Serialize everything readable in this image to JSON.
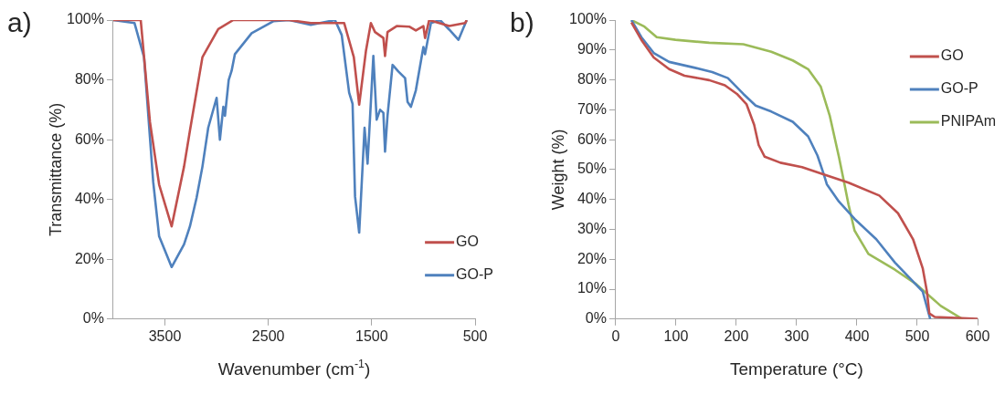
{
  "chart_data": [
    {
      "type": "line",
      "annotations": [
        "a)"
      ],
      "xlabel": "Wavenumber (cm$^{-1}$)",
      "ylabel": "Transmittance (%)",
      "xlim": [
        4000,
        500
      ],
      "xticks": [
        3500,
        2500,
        1500,
        500
      ],
      "ylim": [
        0,
        100
      ],
      "yticks": [
        {
          "value": 0,
          "label": "0%"
        },
        {
          "value": 20,
          "label": "20%"
        },
        {
          "value": 40,
          "label": "40%"
        },
        {
          "value": 60,
          "label": "60%"
        },
        {
          "value": 80,
          "label": "80%"
        },
        {
          "value": 100,
          "label": "100%"
        }
      ],
      "legend": "bottom right",
      "marker": "none",
      "series": [
        {
          "name": "GO",
          "color": "#c0504d",
          "x": [
            4000,
            3734,
            3645,
            3556,
            3435,
            3315,
            3258,
            3137,
            2984,
            2839,
            2300,
            2089,
            1790,
            1766,
            1673,
            1621,
            1556,
            1508,
            1468,
            1387,
            1371,
            1347,
            1258,
            1137,
            1073,
            1000,
            984,
            944,
            750,
            597,
            581
          ],
          "values": [
            100,
            100,
            66,
            45,
            31,
            51,
            63,
            87.6,
            97,
            100,
            100,
            99,
            99,
            99,
            87.6,
            71.7,
            89.6,
            99,
            96,
            94,
            88,
            96,
            98,
            97.8,
            96.5,
            98,
            94,
            100,
            98,
            99,
            100
          ]
        },
        {
          "name": "GO-P",
          "color": "#4f81bd",
          "x": [
            4000,
            3794,
            3702,
            3645,
            3613,
            3556,
            3435,
            3315,
            3258,
            3194,
            3137,
            3081,
            3000,
            2968,
            2935,
            2919,
            2883,
            2855,
            2823,
            2661,
            2452,
            2298,
            2089,
            1855,
            1790,
            1718,
            1685,
            1661,
            1621,
            1569,
            1540,
            1484,
            1452,
            1419,
            1387,
            1371,
            1347,
            1298,
            1242,
            1177,
            1153,
            1121,
            1073,
            1000,
            984,
            927,
            839,
            750,
            661,
            581
          ],
          "values": [
            100,
            99,
            87.6,
            60.8,
            45.8,
            27.7,
            17.4,
            25,
            31,
            40.5,
            51,
            64,
            74,
            60,
            71,
            68,
            80,
            83,
            88.6,
            95.6,
            99.6,
            100,
            98.4,
            100,
            95,
            75.7,
            72,
            41,
            28.9,
            64,
            52,
            88,
            66.7,
            70,
            69,
            56,
            68,
            85,
            82.8,
            80.6,
            72.6,
            71,
            76.5,
            91,
            88.6,
            99,
            100,
            96.8,
            93.4,
            100
          ]
        }
      ]
    },
    {
      "type": "line",
      "annotations": [
        "b)"
      ],
      "xlabel": "Temperature (°C)",
      "ylabel": "Weight (%)",
      "xlim": [
        0,
        600
      ],
      "xticks": [
        0,
        100,
        200,
        300,
        400,
        500,
        600
      ],
      "ylim": [
        0,
        100
      ],
      "yticks": [
        {
          "value": 0,
          "label": "0%"
        },
        {
          "value": 10,
          "label": "10%"
        },
        {
          "value": 20,
          "label": "20%"
        },
        {
          "value": 30,
          "label": "30%"
        },
        {
          "value": 40,
          "label": "40%"
        },
        {
          "value": 50,
          "label": "50%"
        },
        {
          "value": 60,
          "label": "60%"
        },
        {
          "value": 70,
          "label": "70%"
        },
        {
          "value": 80,
          "label": "80%"
        },
        {
          "value": 90,
          "label": "90%"
        },
        {
          "value": 100,
          "label": "100%"
        }
      ],
      "legend": "top right",
      "marker": "none",
      "series": [
        {
          "name": "GO",
          "color": "#c0504d",
          "x": [
            26,
            42.5,
            63,
            88.6,
            114,
            155,
            181,
            201,
            217,
            229.5,
            237,
            247,
            273,
            309,
            345,
            386,
            437,
            468,
            493,
            509,
            516,
            520,
            529,
            600
          ],
          "values": [
            99.2,
            93.4,
            87.5,
            83.6,
            81.4,
            79.9,
            78.2,
            75.3,
            71.8,
            65,
            58.2,
            54.3,
            52.3,
            50.8,
            48.4,
            45.6,
            41.3,
            35.4,
            26.7,
            17,
            9.2,
            1.9,
            0.7,
            0.1
          ]
        },
        {
          "name": "GO-P",
          "color": "#4f81bd",
          "x": [
            26,
            42.5,
            63,
            88.6,
            130,
            160,
            186,
            211.6,
            232,
            258,
            293.5,
            319,
            334.5,
            345,
            350,
            370,
            396,
            432,
            463,
            488,
            509,
            521.5
          ],
          "values": [
            100,
            94.3,
            89,
            86,
            84.1,
            82.6,
            80.6,
            75.3,
            71.4,
            69.4,
            66,
            61.1,
            54.7,
            48.4,
            45.1,
            39.3,
            33.5,
            26.7,
            18.9,
            13.6,
            9.2,
            0
          ]
        },
        {
          "name": "PNIPAm",
          "color": "#9bbb59",
          "x": [
            26,
            47.6,
            68,
            99,
            155,
            211.6,
            258,
            293.5,
            319,
            340,
            355,
            370,
            378,
            386,
            396,
            419,
            463,
            498,
            539,
            575
          ],
          "values": [
            100,
            97.8,
            94.3,
            93.4,
            92.4,
            91.9,
            89.4,
            86.5,
            83.6,
            77.7,
            67.9,
            54.3,
            46.4,
            38.3,
            29.6,
            21.8,
            16.5,
            11.7,
            4.4,
            0
          ]
        }
      ]
    }
  ]
}
